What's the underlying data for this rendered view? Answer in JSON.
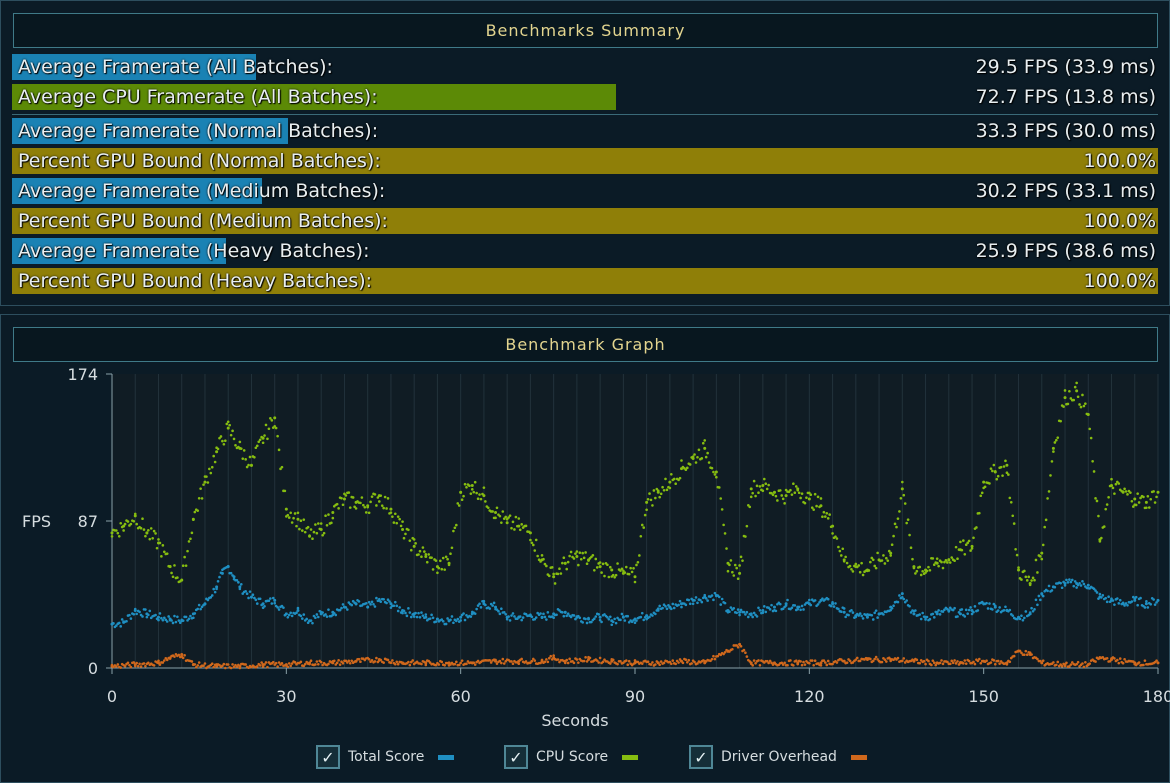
{
  "summary": {
    "title": "Benchmarks Summary",
    "rows": [
      {
        "label": "Average Framerate (All Batches):",
        "value": "29.5 FPS (33.9 ms)",
        "color": "#1a82b4",
        "fraction": 0.213
      },
      {
        "label": "Average CPU Framerate (All Batches):",
        "value": "72.7 FPS (13.8 ms)",
        "color": "#5c8a06",
        "fraction": 0.527
      },
      {
        "label": "Average Framerate (Normal Batches):",
        "value": "33.3 FPS (30.0 ms)",
        "color": "#1a82b4",
        "fraction": 0.241
      },
      {
        "label": "Percent GPU Bound (Normal Batches):",
        "value": "100.0%",
        "color": "#8f7f08",
        "fraction": 1.0
      },
      {
        "label": "Average Framerate (Medium Batches):",
        "value": "30.2 FPS (33.1 ms)",
        "color": "#1a82b4",
        "fraction": 0.218
      },
      {
        "label": "Percent GPU Bound (Medium Batches):",
        "value": "100.0%",
        "color": "#8f7f08",
        "fraction": 1.0
      },
      {
        "label": "Average Framerate (Heavy Batches):",
        "value": "25.9 FPS (38.6 ms)",
        "color": "#1a82b4",
        "fraction": 0.187
      },
      {
        "label": "Percent GPU Bound (Heavy Batches):",
        "value": "100.0%",
        "color": "#8f7f08",
        "fraction": 1.0
      }
    ]
  },
  "graph": {
    "title": "Benchmark Graph"
  },
  "chart_data": {
    "type": "scatter",
    "title": "Benchmark Graph",
    "xlabel": "Seconds",
    "ylabel": "FPS",
    "xlim": [
      0,
      180
    ],
    "ylim": [
      0,
      174
    ],
    "xticks": [
      0,
      30,
      60,
      90,
      120,
      150,
      180
    ],
    "yticks": [
      0,
      87,
      174
    ],
    "series": [
      {
        "name": "Total Score",
        "color": "#1f8fc2",
        "points": [
          [
            0,
            26
          ],
          [
            2,
            27
          ],
          [
            4,
            34
          ],
          [
            6,
            32
          ],
          [
            8,
            30
          ],
          [
            10,
            29
          ],
          [
            12,
            28
          ],
          [
            14,
            32
          ],
          [
            16,
            38
          ],
          [
            18,
            48
          ],
          [
            19,
            56
          ],
          [
            20,
            60
          ],
          [
            21,
            54
          ],
          [
            22,
            48
          ],
          [
            24,
            42
          ],
          [
            26,
            38
          ],
          [
            28,
            40
          ],
          [
            30,
            32
          ],
          [
            32,
            34
          ],
          [
            34,
            28
          ],
          [
            36,
            32
          ],
          [
            38,
            33
          ],
          [
            40,
            36
          ],
          [
            42,
            38
          ],
          [
            44,
            36
          ],
          [
            46,
            40
          ],
          [
            48,
            38
          ],
          [
            50,
            34
          ],
          [
            52,
            32
          ],
          [
            54,
            30
          ],
          [
            56,
            29
          ],
          [
            58,
            28
          ],
          [
            60,
            30
          ],
          [
            62,
            32
          ],
          [
            64,
            38
          ],
          [
            66,
            36
          ],
          [
            68,
            30
          ],
          [
            70,
            30
          ],
          [
            72,
            31
          ],
          [
            74,
            30
          ],
          [
            76,
            32
          ],
          [
            78,
            33
          ],
          [
            80,
            30
          ],
          [
            82,
            29
          ],
          [
            84,
            30
          ],
          [
            86,
            28
          ],
          [
            88,
            30
          ],
          [
            90,
            29
          ],
          [
            92,
            31
          ],
          [
            94,
            35
          ],
          [
            96,
            36
          ],
          [
            98,
            38
          ],
          [
            100,
            40
          ],
          [
            102,
            42
          ],
          [
            104,
            43
          ],
          [
            106,
            34
          ],
          [
            108,
            33
          ],
          [
            110,
            32
          ],
          [
            112,
            34
          ],
          [
            114,
            36
          ],
          [
            116,
            38
          ],
          [
            118,
            36
          ],
          [
            120,
            38
          ],
          [
            122,
            40
          ],
          [
            124,
            38
          ],
          [
            126,
            33
          ],
          [
            128,
            31
          ],
          [
            130,
            30
          ],
          [
            132,
            32
          ],
          [
            134,
            36
          ],
          [
            136,
            44
          ],
          [
            138,
            32
          ],
          [
            140,
            30
          ],
          [
            142,
            32
          ],
          [
            144,
            34
          ],
          [
            146,
            32
          ],
          [
            148,
            34
          ],
          [
            150,
            38
          ],
          [
            152,
            36
          ],
          [
            154,
            34
          ],
          [
            156,
            30
          ],
          [
            158,
            32
          ],
          [
            160,
            44
          ],
          [
            162,
            48
          ],
          [
            164,
            50
          ],
          [
            166,
            50
          ],
          [
            168,
            49
          ],
          [
            170,
            42
          ],
          [
            172,
            40
          ],
          [
            174,
            38
          ],
          [
            176,
            40
          ],
          [
            178,
            38
          ],
          [
            180,
            40
          ]
        ]
      },
      {
        "name": "CPU Score",
        "color": "#86bd10",
        "points": [
          [
            0,
            80
          ],
          [
            2,
            84
          ],
          [
            4,
            90
          ],
          [
            6,
            80
          ],
          [
            8,
            74
          ],
          [
            10,
            60
          ],
          [
            12,
            52
          ],
          [
            14,
            88
          ],
          [
            16,
            110
          ],
          [
            18,
            128
          ],
          [
            20,
            142
          ],
          [
            22,
            130
          ],
          [
            24,
            120
          ],
          [
            26,
            136
          ],
          [
            28,
            148
          ],
          [
            30,
            94
          ],
          [
            32,
            88
          ],
          [
            34,
            78
          ],
          [
            36,
            82
          ],
          [
            38,
            92
          ],
          [
            40,
            100
          ],
          [
            42,
            98
          ],
          [
            44,
            96
          ],
          [
            46,
            102
          ],
          [
            48,
            94
          ],
          [
            50,
            82
          ],
          [
            52,
            72
          ],
          [
            54,
            66
          ],
          [
            56,
            60
          ],
          [
            58,
            62
          ],
          [
            60,
            104
          ],
          [
            62,
            108
          ],
          [
            64,
            102
          ],
          [
            66,
            92
          ],
          [
            68,
            86
          ],
          [
            70,
            84
          ],
          [
            72,
            80
          ],
          [
            74,
            64
          ],
          [
            76,
            54
          ],
          [
            78,
            62
          ],
          [
            80,
            66
          ],
          [
            82,
            64
          ],
          [
            84,
            60
          ],
          [
            86,
            58
          ],
          [
            88,
            56
          ],
          [
            90,
            54
          ],
          [
            92,
            98
          ],
          [
            94,
            104
          ],
          [
            96,
            110
          ],
          [
            98,
            118
          ],
          [
            100,
            124
          ],
          [
            102,
            130
          ],
          [
            104,
            116
          ],
          [
            106,
            62
          ],
          [
            108,
            56
          ],
          [
            110,
            106
          ],
          [
            112,
            108
          ],
          [
            114,
            104
          ],
          [
            116,
            102
          ],
          [
            118,
            106
          ],
          [
            120,
            100
          ],
          [
            122,
            96
          ],
          [
            124,
            84
          ],
          [
            126,
            64
          ],
          [
            128,
            60
          ],
          [
            130,
            58
          ],
          [
            132,
            64
          ],
          [
            134,
            68
          ],
          [
            136,
            106
          ],
          [
            138,
            60
          ],
          [
            140,
            58
          ],
          [
            142,
            62
          ],
          [
            144,
            64
          ],
          [
            146,
            70
          ],
          [
            148,
            72
          ],
          [
            150,
            110
          ],
          [
            152,
            116
          ],
          [
            154,
            120
          ],
          [
            156,
            58
          ],
          [
            158,
            50
          ],
          [
            160,
            68
          ],
          [
            162,
            130
          ],
          [
            164,
            160
          ],
          [
            166,
            164
          ],
          [
            168,
            150
          ],
          [
            170,
            76
          ],
          [
            172,
            108
          ],
          [
            174,
            104
          ],
          [
            176,
            100
          ],
          [
            178,
            98
          ],
          [
            180,
            104
          ]
        ]
      },
      {
        "name": "Driver Overhead",
        "color": "#d0681c",
        "points": [
          [
            0,
            1
          ],
          [
            4,
            2
          ],
          [
            8,
            3
          ],
          [
            10,
            6
          ],
          [
            12,
            8
          ],
          [
            14,
            2
          ],
          [
            18,
            1
          ],
          [
            22,
            1
          ],
          [
            26,
            2
          ],
          [
            30,
            2
          ],
          [
            34,
            3
          ],
          [
            38,
            3
          ],
          [
            42,
            4
          ],
          [
            46,
            5
          ],
          [
            50,
            3
          ],
          [
            54,
            3
          ],
          [
            58,
            3
          ],
          [
            62,
            3
          ],
          [
            66,
            4
          ],
          [
            70,
            4
          ],
          [
            74,
            4
          ],
          [
            76,
            6
          ],
          [
            78,
            4
          ],
          [
            82,
            5
          ],
          [
            86,
            4
          ],
          [
            90,
            3
          ],
          [
            94,
            3
          ],
          [
            98,
            4
          ],
          [
            102,
            3
          ],
          [
            106,
            10
          ],
          [
            108,
            14
          ],
          [
            110,
            3
          ],
          [
            114,
            3
          ],
          [
            118,
            3
          ],
          [
            122,
            3
          ],
          [
            126,
            4
          ],
          [
            130,
            5
          ],
          [
            134,
            5
          ],
          [
            138,
            4
          ],
          [
            142,
            3
          ],
          [
            146,
            3
          ],
          [
            150,
            4
          ],
          [
            154,
            3
          ],
          [
            156,
            10
          ],
          [
            158,
            8
          ],
          [
            160,
            3
          ],
          [
            164,
            2
          ],
          [
            168,
            2
          ],
          [
            170,
            6
          ],
          [
            172,
            5
          ],
          [
            176,
            3
          ],
          [
            180,
            3
          ]
        ]
      }
    ],
    "legend": [
      "Total Score",
      "CPU Score",
      "Driver Overhead"
    ],
    "legend_position": "bottom"
  },
  "legend": {
    "items": [
      {
        "label": "Total Score",
        "checked": true,
        "color": "#1f8fc2",
        "check_glyph": "✓"
      },
      {
        "label": "CPU Score",
        "checked": true,
        "color": "#86bd10",
        "check_glyph": "✓"
      },
      {
        "label": "Driver Overhead",
        "checked": true,
        "color": "#d0681c",
        "check_glyph": "✓"
      }
    ]
  }
}
